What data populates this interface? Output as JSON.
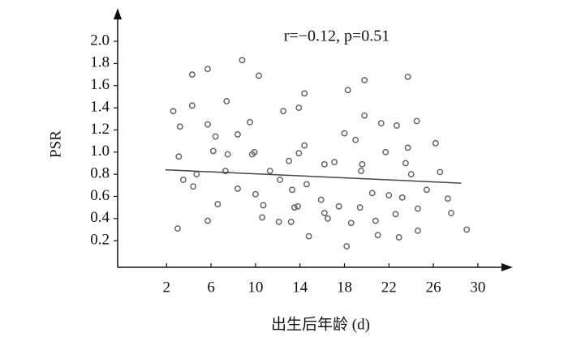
{
  "chart_data": {
    "type": "scatter",
    "annotation": "r=−0.12, p=0.51",
    "x_label": "出生后年龄 (d)",
    "y_label": "PSR",
    "xlim": [
      -2.4,
      33
    ],
    "ylim": [
      -0.04,
      2.3
    ],
    "xticks": [
      2,
      6,
      10,
      14,
      18,
      22,
      26,
      30
    ],
    "yticks": [
      0.2,
      0.4,
      0.6,
      0.8,
      {
        "value": 1.0,
        "label": "1.0"
      },
      1.2,
      1.4,
      1.6,
      1.8,
      {
        "value": 2.0,
        "label": "2.0"
      }
    ],
    "marker_color": "#666666",
    "line_color": "#444444",
    "x": [
      2.6,
      3.0,
      3.1,
      3.2,
      3.5,
      4.3,
      4.3,
      4.4,
      4.7,
      5.7,
      5.7,
      5.7,
      6.2,
      6.4,
      6.6,
      7.4,
      7.5,
      7.3,
      8.4,
      8.4,
      8.8,
      9.5,
      9.7,
      9.9,
      10.0,
      10.3,
      10.7,
      10.6,
      11.3,
      12.2,
      12.1,
      12.5,
      13.0,
      13.2,
      13.3,
      13.5,
      13.8,
      13.9,
      13.9,
      14.4,
      14.4,
      14.6,
      14.8,
      15.9,
      16.2,
      16.2,
      16.5,
      17.1,
      17.5,
      18.0,
      18.3,
      18.2,
      18.6,
      19.0,
      19.4,
      19.5,
      19.6,
      19.8,
      19.8,
      20.5,
      20.8,
      21.0,
      21.3,
      21.7,
      22.0,
      22.6,
      22.7,
      22.9,
      23.2,
      23.5,
      23.7,
      23.7,
      24.0,
      24.5,
      24.6,
      24.6,
      25.4,
      26.2,
      26.6,
      27.3,
      27.6,
      29.0
    ],
    "values": [
      1.37,
      0.31,
      0.96,
      1.23,
      0.75,
      1.7,
      1.42,
      0.69,
      0.8,
      1.75,
      1.25,
      0.38,
      1.01,
      1.14,
      0.53,
      1.46,
      0.98,
      0.83,
      1.16,
      0.67,
      1.83,
      1.27,
      0.98,
      1.0,
      0.62,
      1.69,
      0.52,
      0.41,
      0.83,
      0.75,
      0.37,
      1.37,
      0.92,
      0.37,
      0.66,
      0.5,
      0.51,
      1.4,
      0.99,
      1.53,
      1.06,
      0.71,
      0.24,
      0.57,
      0.45,
      0.89,
      0.4,
      0.91,
      0.51,
      1.17,
      1.56,
      0.15,
      0.36,
      1.11,
      0.5,
      0.83,
      0.89,
      1.65,
      1.33,
      0.63,
      0.38,
      0.25,
      1.26,
      1.0,
      0.61,
      0.44,
      1.24,
      0.23,
      0.59,
      0.9,
      1.04,
      1.68,
      0.8,
      1.28,
      0.49,
      0.29,
      0.66,
      1.08,
      0.82,
      0.58,
      0.45,
      0.3
    ],
    "trend_line": {
      "x": [
        1.9,
        28.5
      ],
      "y": [
        0.84,
        0.72
      ]
    }
  }
}
